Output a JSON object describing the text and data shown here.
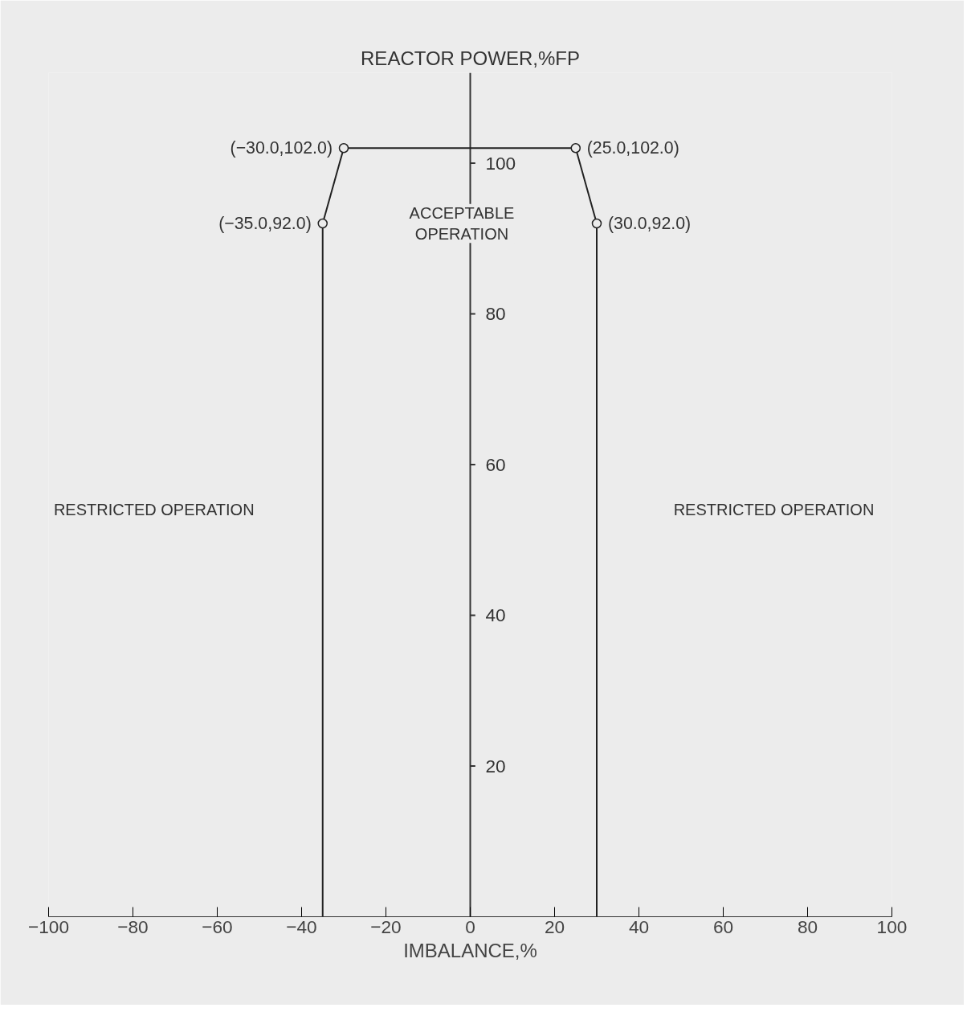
{
  "chart_data": {
    "type": "line",
    "title": "REACTOR POWER,%FP",
    "xlabel": "IMBALANCE,%",
    "series": [
      {
        "color": "#222222",
        "x": [
          -35,
          -35,
          -30,
          25,
          30,
          30
        ],
        "values": [
          0,
          92,
          102,
          102,
          92,
          0
        ]
      },
      {
        "type": "scatter",
        "color": "#222222",
        "marker": "circle",
        "x": [
          -35,
          -30,
          25,
          30
        ],
        "values": [
          92,
          102,
          102,
          92
        ]
      }
    ],
    "xlim": [
      -100,
      100
    ],
    "xticks": [
      -100,
      -80,
      -60,
      -40,
      -20,
      0,
      20,
      40,
      60,
      80,
      100
    ],
    "ylim": [
      0,
      112
    ],
    "yticks": [
      20,
      40,
      60,
      80,
      100
    ],
    "grid": false,
    "annotations": [
      {
        "text": "(−35.0,92.0)",
        "x": -35,
        "y": 92
      },
      {
        "text": "(−30.0,102.0)",
        "x": -30,
        "y": 102
      },
      {
        "text": "(25.0,102.0)",
        "x": 25,
        "y": 102
      },
      {
        "text": "(30.0,92.0)",
        "x": 30,
        "y": 92
      },
      "ACCEPTABLE\nOPERATION",
      "RESTRICTED OPERATION",
      "RESTRICTED OPERATION"
    ]
  }
}
